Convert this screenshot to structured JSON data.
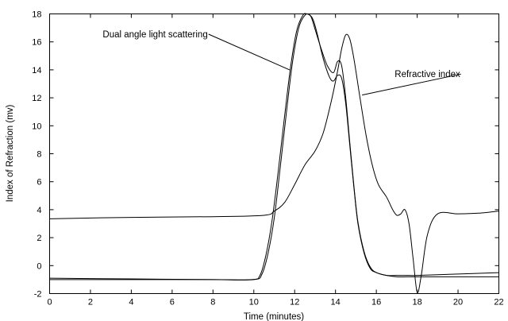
{
  "chart_data": {
    "type": "line",
    "xlabel": "Time (minutes)",
    "ylabel": "Index of Refraction (mv)",
    "xlim": [
      0,
      22
    ],
    "ylim": [
      -2,
      18
    ],
    "x_ticks": [
      0,
      2,
      4,
      6,
      8,
      10,
      12,
      14,
      16,
      18,
      20,
      22
    ],
    "y_ticks": [
      -2,
      0,
      2,
      4,
      6,
      8,
      10,
      12,
      14,
      16,
      18
    ],
    "grid": false,
    "legend": "none",
    "annotations": [
      {
        "text": "Dual angle light scattering",
        "series": "scatter-high",
        "text_at": [
          2.6,
          16.55
        ],
        "arrow_to": [
          11.75,
          14.0
        ]
      },
      {
        "text": "Refractive index",
        "series": "refractive-index",
        "text_at": [
          16.9,
          13.7
        ],
        "arrow_to": [
          15.3,
          12.2
        ]
      }
    ],
    "series": [
      {
        "id": "scatter-high",
        "x": [
          0,
          4,
          8,
          9.9,
          10.3,
          10.6,
          10.9,
          11.2,
          11.5,
          11.8,
          12.1,
          12.4,
          12.6,
          12.8,
          13.0,
          13.3,
          13.6,
          13.9,
          14.1,
          14.3,
          14.5,
          14.7,
          14.9,
          15.1,
          15.4,
          15.7,
          16.0,
          16.5,
          17.0,
          17.5,
          18.0,
          20.0,
          22.0
        ],
        "y": [
          -1.0,
          -1.0,
          -1.0,
          -1.0,
          -0.7,
          0.8,
          3.3,
          6.8,
          10.6,
          14.2,
          16.8,
          17.9,
          18.0,
          17.8,
          16.9,
          15.5,
          14.3,
          13.8,
          14.6,
          14.3,
          12.0,
          8.8,
          5.7,
          3.1,
          1.0,
          -0.1,
          -0.5,
          -0.7,
          -0.8,
          -0.8,
          -0.8,
          -0.8,
          -0.8
        ]
      },
      {
        "id": "scatter-low",
        "x": [
          0,
          4,
          8,
          10.0,
          10.4,
          10.7,
          11.0,
          11.3,
          11.6,
          11.9,
          12.2,
          12.5,
          12.7,
          12.9,
          13.1,
          13.4,
          13.7,
          13.9,
          14.1,
          14.3,
          14.5,
          14.7,
          14.9,
          15.1,
          15.4,
          15.7,
          16.0,
          16.5,
          17.0,
          17.5,
          18.0,
          20.0,
          22.0
        ],
        "y": [
          -0.9,
          -0.95,
          -1.0,
          -1.0,
          -0.6,
          0.9,
          3.4,
          7.1,
          11.0,
          14.6,
          17.0,
          17.9,
          17.95,
          17.6,
          16.6,
          14.8,
          13.5,
          13.2,
          13.6,
          13.4,
          11.6,
          8.6,
          5.6,
          3.0,
          0.9,
          -0.2,
          -0.5,
          -0.7,
          -0.7,
          -0.7,
          -0.7,
          -0.6,
          -0.5
        ]
      },
      {
        "id": "refractive-index",
        "x": [
          0,
          4,
          8,
          10.5,
          11.0,
          11.5,
          12.0,
          12.5,
          13.0,
          13.4,
          13.8,
          14.1,
          14.3,
          14.5,
          14.7,
          14.9,
          15.2,
          15.5,
          15.8,
          16.1,
          16.5,
          16.8,
          17.0,
          17.2,
          17.4,
          17.6,
          17.8,
          18.0,
          18.2,
          18.5,
          19.0,
          20.0,
          21.0,
          22.0
        ],
        "y": [
          3.35,
          3.45,
          3.5,
          3.6,
          3.9,
          4.5,
          5.8,
          7.2,
          8.2,
          9.5,
          11.8,
          13.9,
          15.5,
          16.5,
          16.2,
          14.8,
          12.0,
          9.3,
          7.2,
          5.8,
          4.9,
          4.0,
          3.6,
          3.7,
          4.0,
          3.0,
          0.5,
          -1.9,
          -0.7,
          2.2,
          3.7,
          3.7,
          3.75,
          3.9
        ]
      }
    ]
  }
}
